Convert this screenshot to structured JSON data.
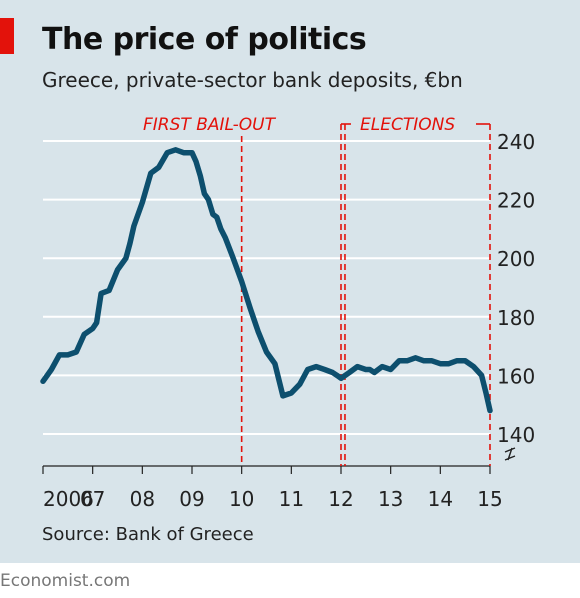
{
  "header": {
    "title": "The price of politics",
    "subtitle": "Greece, private-sector bank deposits, €bn"
  },
  "footer": {
    "source": "Source: Bank of Greece",
    "brand": "Economist.com"
  },
  "colors": {
    "panel": "#d8e4ea",
    "line": "#0d4f6e",
    "annotation": "#e3120b",
    "grid": "#ffffff",
    "text": "#222222"
  },
  "chart_data": {
    "type": "line",
    "title": "The price of politics",
    "subtitle": "Greece, private-sector bank deposits, €bn",
    "xlabel": "",
    "ylabel": "",
    "ylim": [
      130,
      245
    ],
    "xlim": [
      2006.0,
      2015.0
    ],
    "y_axis_side": "right",
    "grid": "horizontal",
    "broken_axis": true,
    "y_ticks": [
      140,
      160,
      180,
      200,
      220,
      240
    ],
    "y_tick_labels": [
      "140",
      "160",
      "180",
      "200",
      "220",
      "240"
    ],
    "x_ticks": [
      2006,
      2007,
      2008,
      2009,
      2010,
      2011,
      2012,
      2013,
      2014,
      2015
    ],
    "x_tick_labels": [
      "2006",
      "07",
      "08",
      "09",
      "10",
      "11",
      "12",
      "13",
      "14",
      "15"
    ],
    "annotations": [
      {
        "label": "FIRST BAIL-OUT",
        "x": 2010.0
      },
      {
        "label": "ELECTIONS",
        "x_start": 2012.0,
        "x_start2": 2012.08,
        "x_end": 2015.0
      }
    ],
    "series": [
      {
        "x": [
          2006.0,
          2006.17,
          2006.33,
          2006.5,
          2006.67,
          2006.83,
          2007.0,
          2007.08,
          2007.17,
          2007.33,
          2007.5,
          2007.67,
          2007.75,
          2007.83,
          2008.0,
          2008.17,
          2008.33,
          2008.5,
          2008.67,
          2008.83,
          2009.0,
          2009.08,
          2009.17,
          2009.25,
          2009.33,
          2009.42,
          2009.5,
          2009.58,
          2009.67,
          2009.83,
          2010.0,
          2010.17,
          2010.33,
          2010.5,
          2010.67,
          2010.83,
          2011.0,
          2011.17,
          2011.33,
          2011.5,
          2011.67,
          2011.83,
          2011.92,
          2012.0,
          2012.17,
          2012.33,
          2012.5,
          2012.58,
          2012.67,
          2012.83,
          2013.0,
          2013.17,
          2013.33,
          2013.5,
          2013.67,
          2013.83,
          2014.0,
          2014.17,
          2014.33,
          2014.5,
          2014.67,
          2014.83,
          2014.92,
          2015.0
        ],
        "y": [
          158,
          162,
          167,
          167,
          168,
          174,
          176,
          178,
          188,
          189,
          196,
          200,
          205,
          211,
          219,
          229,
          231,
          236,
          237,
          236,
          236,
          233,
          228,
          222,
          220,
          215,
          214,
          210,
          207,
          200,
          192,
          183,
          175,
          168,
          164,
          153,
          154,
          157,
          162,
          163,
          162,
          161,
          160,
          159,
          161,
          163,
          162,
          162,
          161,
          163,
          162,
          165,
          165,
          166,
          165,
          165,
          164,
          164,
          165,
          165,
          163,
          160,
          154,
          148
        ]
      }
    ]
  }
}
